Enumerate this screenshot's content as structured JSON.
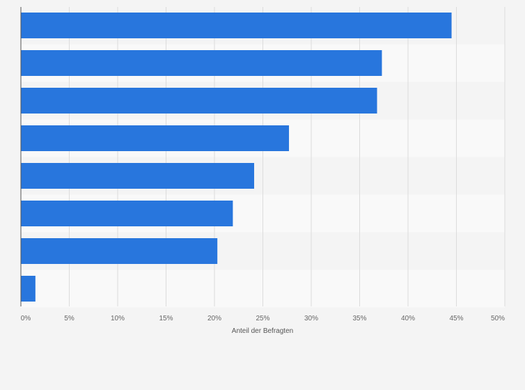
{
  "chart_data": {
    "type": "bar",
    "orientation": "horizontal",
    "title": "",
    "xlabel": "Anteil der Befragten",
    "ylabel": "",
    "categories": [
      "",
      "",
      "",
      "",
      "",
      "",
      "",
      ""
    ],
    "values": [
      44.5,
      37.3,
      36.8,
      27.7,
      24.1,
      21.9,
      20.3,
      1.5
    ],
    "xlim": [
      0,
      50
    ],
    "xticks": [
      0,
      5,
      10,
      15,
      20,
      25,
      30,
      35,
      40,
      45,
      50
    ],
    "xtick_labels": [
      "0%",
      "5%",
      "10%",
      "15%",
      "20%",
      "25%",
      "30%",
      "35%",
      "40%",
      "45%",
      "50%"
    ],
    "grid": true,
    "bar_color": "#2876dd",
    "grid_color": "#dcdcdc",
    "band_colors": [
      "#f4f4f4",
      "#f9f9f9"
    ]
  }
}
